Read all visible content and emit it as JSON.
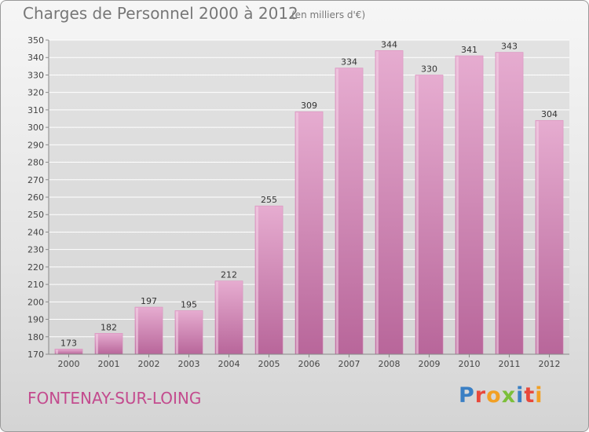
{
  "header": {
    "title": "Charges de Personnel 2000 à 2012",
    "subtitle": "(en milliers d'€)"
  },
  "footer": {
    "commune": "FONTENAY-SUR-LOING",
    "logo_letters": [
      "P",
      "r",
      "o",
      "x",
      "i",
      "t",
      "i"
    ],
    "logo_colors": [
      "#3a7fc4",
      "#e8483b",
      "#f2a024",
      "#7cbf3a",
      "#3a7fc4",
      "#e8483b",
      "#f2a024"
    ]
  },
  "colors": {
    "bar_fill": "#d98cbc",
    "bar_light": "#e6acd0",
    "bar_dark": "#b8669a",
    "grid": "#ffffff",
    "accent": "#c34b8e"
  },
  "chart_data": {
    "type": "bar",
    "title": "Charges de Personnel 2000 à 2012",
    "subtitle": "(en milliers d'€)",
    "categories": [
      "2000",
      "2001",
      "2002",
      "2003",
      "2004",
      "2005",
      "2006",
      "2007",
      "2008",
      "2009",
      "2010",
      "2011",
      "2012"
    ],
    "values": [
      173,
      182,
      197,
      195,
      212,
      255,
      309,
      334,
      344,
      330,
      341,
      343,
      304
    ],
    "ylim": [
      170,
      350
    ],
    "yticks": [
      170,
      180,
      190,
      200,
      210,
      220,
      230,
      240,
      250,
      260,
      270,
      280,
      290,
      300,
      310,
      320,
      330,
      340,
      350
    ],
    "xlabel": "",
    "ylabel": "",
    "grid": true
  }
}
